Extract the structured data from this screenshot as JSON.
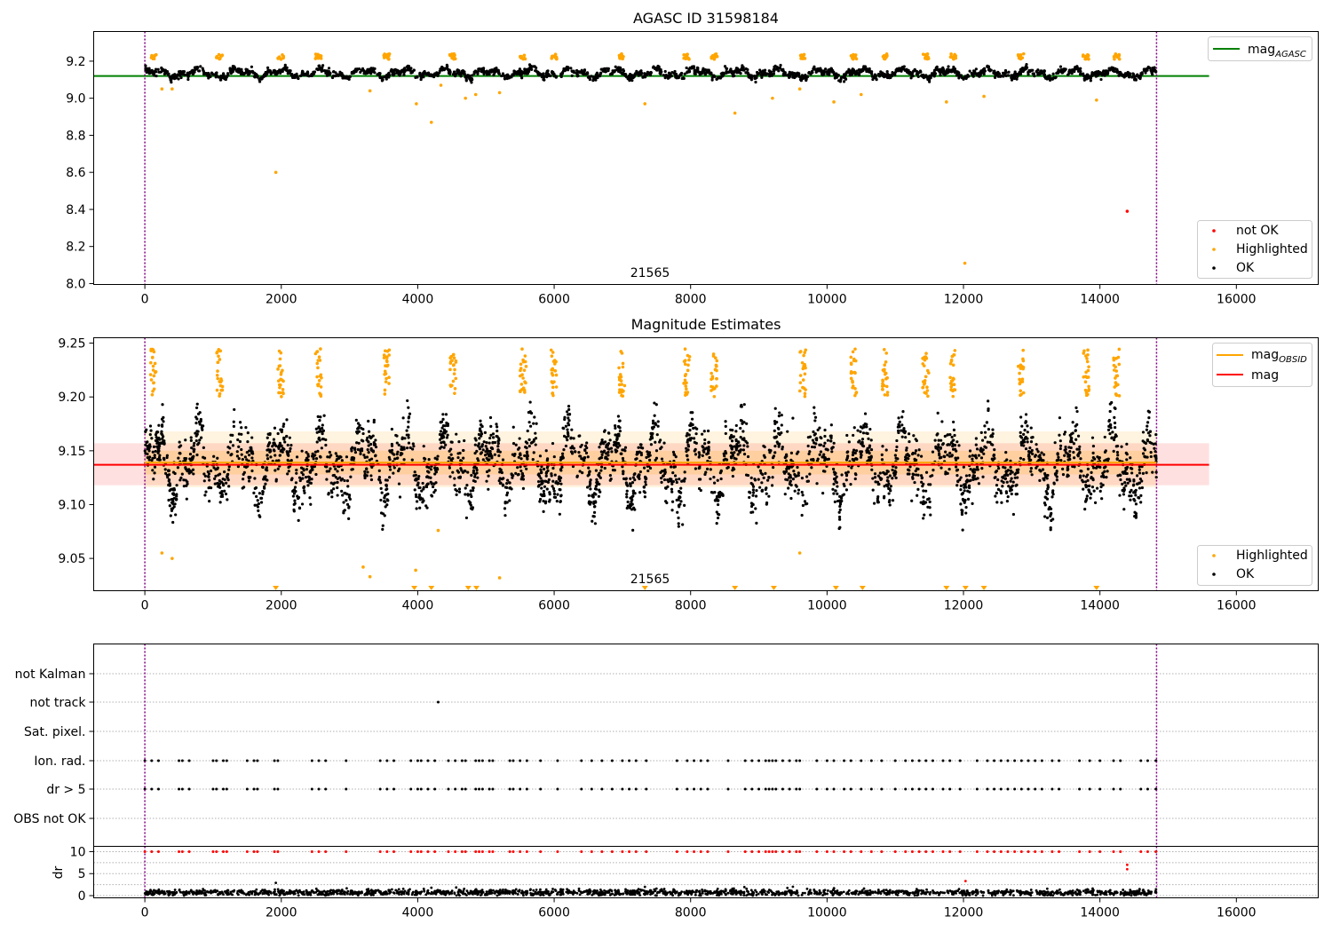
{
  "chart_data": [
    {
      "type": "scatter",
      "title": "AGASC ID 31598184",
      "xlim": [
        -750,
        17200
      ],
      "ylim": [
        7.995,
        9.36
      ],
      "x_ticks": [
        0,
        2000,
        4000,
        6000,
        8000,
        10000,
        12000,
        14000,
        16000
      ],
      "y_ticks": [
        8.0,
        8.2,
        8.4,
        8.6,
        8.8,
        9.0,
        9.2
      ],
      "obsid_label": "21565",
      "obsid_bounds": [
        0,
        14830
      ],
      "colors": {
        "ok": "#000000",
        "highlighted": "#ffa500",
        "not_ok": "#ff0000",
        "line": "#008000",
        "bounds": "#800080"
      },
      "reference_line": {
        "name": "mag",
        "subscript": "AGASC",
        "y": 9.12
      },
      "legend_top": "top-right",
      "legend_bottom": "bottom-right",
      "series": [
        {
          "name": "not OK",
          "x": [
            14400
          ],
          "y": [
            8.39
          ]
        },
        {
          "name": "Highlighted",
          "x": [
            1920,
            4200,
            3980,
            12020,
            8650,
            7330,
            9200,
            10100,
            10500,
            11750,
            12300,
            13950,
            250,
            400,
            3300,
            4340,
            4700,
            4850,
            5200,
            9600
          ],
          "y": [
            8.6,
            8.87,
            8.97,
            8.11,
            8.92,
            8.97,
            9.0,
            8.98,
            9.02,
            8.98,
            9.01,
            8.99,
            9.05,
            9.05,
            9.04,
            9.07,
            9.0,
            9.02,
            9.03,
            9.05
          ]
        },
        {
          "name": "OK",
          "x": [],
          "y": []
        }
      ]
    },
    {
      "type": "scatter",
      "title": "Magnitude Estimates",
      "xlim": [
        -750,
        17200
      ],
      "ylim": [
        9.02,
        9.255
      ],
      "x_ticks": [
        0,
        2000,
        4000,
        6000,
        8000,
        10000,
        12000,
        14000,
        16000
      ],
      "y_ticks": [
        9.05,
        9.1,
        9.15,
        9.2,
        9.25
      ],
      "obsid_label": "21565",
      "obsid_bounds": [
        0,
        14830
      ],
      "mag": {
        "name": "mag",
        "y": 9.137,
        "band_1sigma": [
          9.118,
          9.157
        ]
      },
      "mag_obsid": {
        "name": "mag",
        "subscript": "OBSID",
        "y": 9.139,
        "band_1sigma": [
          9.128,
          9.15
        ],
        "band_2sigma": [
          9.116,
          9.168
        ]
      },
      "below_range_markers_x": [
        1920,
        3950,
        4200,
        4740,
        4860,
        7330,
        8650,
        9220,
        10130,
        10520,
        11750,
        12030,
        12300,
        13950
      ],
      "legend_top": "top-right",
      "legend_bottom": "bottom-right",
      "series": [
        {
          "name": "Highlighted",
          "x": [
            250,
            400,
            3200,
            3300,
            3970,
            4300,
            5200,
            9600
          ],
          "y": [
            9.055,
            9.05,
            9.042,
            9.033,
            9.039,
            9.076,
            9.032,
            9.055
          ]
        },
        {
          "name": "OK",
          "x": [],
          "y": []
        }
      ]
    },
    {
      "type": "scatter",
      "title": "",
      "xlim": [
        -750,
        17200
      ],
      "x_ticks": [
        0,
        2000,
        4000,
        6000,
        8000,
        10000,
        12000,
        14000,
        16000
      ],
      "flag_rows": [
        "not Kalman",
        "not track",
        "Sat. pixel.",
        "Ion. rad.",
        "dr > 5",
        "OBS not OK"
      ],
      "flag_points": {
        "not track": [
          4300
        ],
        "Ion. rad.": [
          0,
          100,
          200,
          500,
          550,
          650,
          1000,
          1050,
          1150,
          1200,
          1500,
          1600,
          1650,
          1900,
          1950,
          2450,
          2550,
          2650,
          2950,
          3450,
          3550,
          3650,
          3900,
          4000,
          4050,
          4150,
          4250,
          4450,
          4550,
          4650,
          4700,
          4850,
          4900,
          4950,
          5050,
          5100,
          5350,
          5400,
          5500,
          5600,
          5800,
          6050,
          6400,
          6550,
          6700,
          6850,
          7000,
          7100,
          7200,
          7350,
          7800,
          7950,
          8050,
          8150,
          8250,
          8550,
          8800,
          8900,
          9000,
          9100,
          9150,
          9200,
          9250,
          9350,
          9450,
          9550,
          9600,
          9850,
          10000,
          10100,
          10250,
          10350,
          10500,
          10650,
          10800,
          11000,
          11150,
          11250,
          11350,
          11450,
          11550,
          11700,
          11800,
          11950,
          12200,
          12350,
          12450,
          12550,
          12650,
          12750,
          12850,
          12950,
          13050,
          13150,
          13300,
          13400,
          13700,
          13850,
          14000,
          14200,
          14300,
          14600,
          14700,
          14820
        ],
        "dr > 5": [
          0,
          100,
          200,
          500,
          550,
          650,
          1000,
          1050,
          1150,
          1200,
          1500,
          1600,
          1650,
          1900,
          1950,
          2450,
          2550,
          2650,
          2950,
          3450,
          3550,
          3650,
          3900,
          4000,
          4050,
          4150,
          4250,
          4450,
          4550,
          4650,
          4700,
          4850,
          4900,
          4950,
          5050,
          5100,
          5350,
          5400,
          5500,
          5600,
          5800,
          6050,
          6400,
          6550,
          6700,
          6850,
          7000,
          7100,
          7200,
          7350,
          7800,
          7950,
          8050,
          8150,
          8250,
          8550,
          8800,
          8900,
          9000,
          9100,
          9150,
          9200,
          9250,
          9350,
          9450,
          9550,
          9600,
          9850,
          10000,
          10100,
          10250,
          10350,
          10500,
          10650,
          10800,
          11000,
          11150,
          11250,
          11350,
          11450,
          11550,
          11700,
          11800,
          11950,
          12200,
          12350,
          12450,
          12550,
          12650,
          12750,
          12850,
          12950,
          13050,
          13150,
          13300,
          13400,
          13700,
          13850,
          14000,
          14200,
          14300,
          14600,
          14700,
          14820
        ]
      }
    },
    {
      "type": "scatter",
      "title": "",
      "xlabel": "",
      "ylabel": "dr",
      "xlim": [
        -750,
        17200
      ],
      "ylim": [
        -0.5,
        11.2
      ],
      "x_ticks": [
        0,
        2000,
        4000,
        6000,
        8000,
        10000,
        12000,
        14000,
        16000
      ],
      "y_ticks": [
        0,
        5,
        10
      ],
      "clip_value": 10,
      "clipped_x": [
        0,
        100,
        200,
        500,
        550,
        650,
        1000,
        1050,
        1150,
        1200,
        1500,
        1600,
        1650,
        1900,
        1950,
        2450,
        2550,
        2650,
        2950,
        3450,
        3550,
        3650,
        3900,
        4000,
        4050,
        4150,
        4250,
        4450,
        4550,
        4650,
        4700,
        4850,
        4900,
        4950,
        5050,
        5100,
        5350,
        5400,
        5500,
        5600,
        5800,
        6050,
        6400,
        6550,
        6700,
        6850,
        7000,
        7100,
        7200,
        7350,
        7800,
        7950,
        8050,
        8150,
        8250,
        8550,
        8800,
        8900,
        9000,
        9100,
        9150,
        9200,
        9250,
        9350,
        9450,
        9550,
        9600,
        9850,
        10000,
        10100,
        10250,
        10350,
        10500,
        10650,
        10800,
        11000,
        11150,
        11250,
        11350,
        11450,
        11550,
        11700,
        11800,
        11950,
        12200,
        12350,
        12450,
        12550,
        12650,
        12750,
        12850,
        12950,
        13050,
        13150,
        13300,
        13400,
        13700,
        13850,
        14000,
        14200,
        14300,
        14600,
        14700,
        14820
      ],
      "outliers": {
        "x": [
          1920,
          4200,
          7330,
          10100,
          12030,
          14400,
          14400
        ],
        "y": [
          2.9,
          1.8,
          2.0,
          1.5,
          3.3,
          6.0,
          7.0
        ]
      }
    }
  ]
}
